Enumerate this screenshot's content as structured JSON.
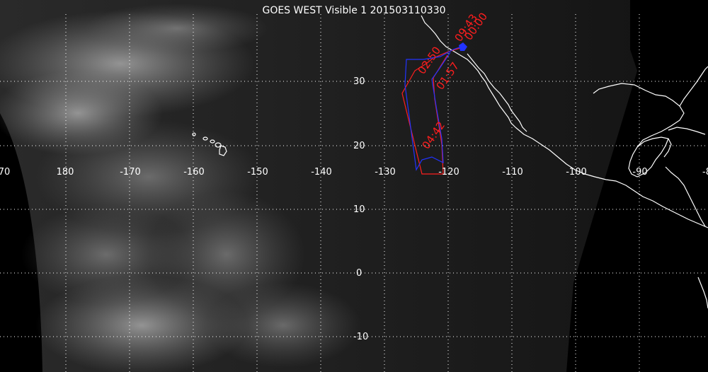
{
  "title": "GOES WEST Visible 1 201503110330",
  "colors": {
    "grid": "#ffffff",
    "coast": "#ffffff",
    "track_red": "#ff1e1e",
    "track_blue": "#2233ff"
  },
  "lon_labels": [
    "70",
    "180",
    "-170",
    "-160",
    "-150",
    "-140",
    "-130",
    "-120",
    "-110",
    "-100",
    "-90",
    "-8"
  ],
  "lat_labels": [
    "30",
    "20",
    "10",
    "0",
    "-10"
  ],
  "track_labels": [
    "09:43",
    "00:00",
    "02:50",
    "01:57",
    "04:42"
  ]
}
